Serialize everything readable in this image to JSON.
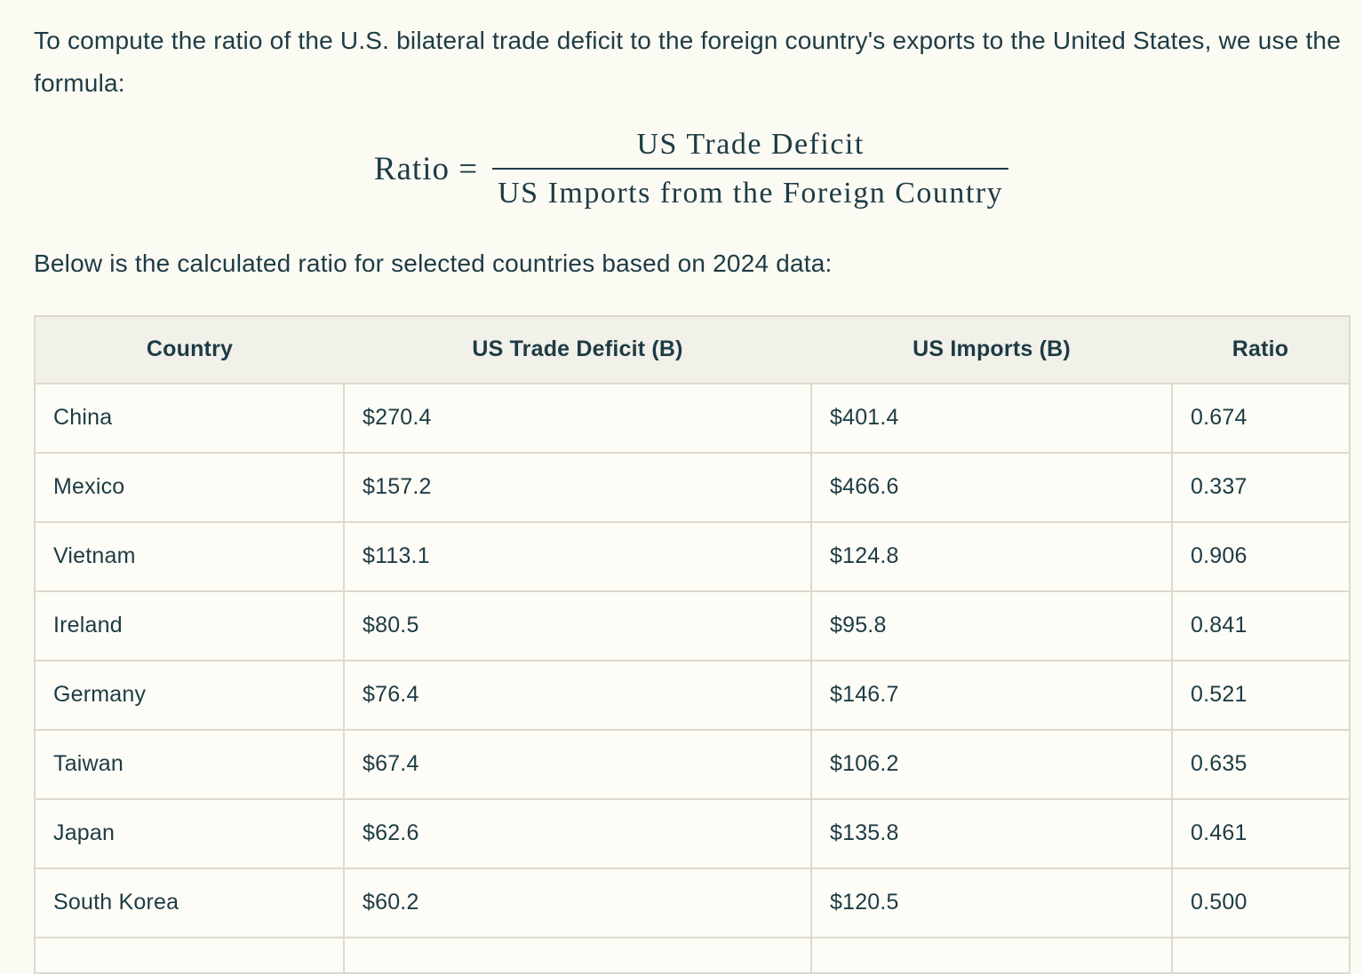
{
  "page": {
    "background_color": "#FBFAF3",
    "text_color": "#1D3B45",
    "intro_paragraph": "To compute the ratio of the U.S. bilateral trade deficit to the foreign country's exports to the United States, we use the formula:",
    "table_intro": "Below is the calculated ratio for selected countries based on 2024 data:"
  },
  "formula": {
    "lhs": "Ratio",
    "equals": "=",
    "numerator": "US Trade Deficit",
    "denominator": "US Imports from the Foreign Country"
  },
  "table": {
    "border_color": "#DCDACD",
    "header_background": "#F1F0E9",
    "cell_background": "#FDFCF6",
    "columns": [
      "Country",
      "US Trade Deficit (B)",
      "US Imports (B)",
      "Ratio"
    ],
    "rows": [
      {
        "country": "China",
        "deficit": "$270.4",
        "imports": "$401.4",
        "ratio": "0.674"
      },
      {
        "country": "Mexico",
        "deficit": "$157.2",
        "imports": "$466.6",
        "ratio": "0.337"
      },
      {
        "country": "Vietnam",
        "deficit": "$113.1",
        "imports": "$124.8",
        "ratio": "0.906"
      },
      {
        "country": "Ireland",
        "deficit": "$80.5",
        "imports": "$95.8",
        "ratio": "0.841"
      },
      {
        "country": "Germany",
        "deficit": "$76.4",
        "imports": "$146.7",
        "ratio": "0.521"
      },
      {
        "country": "Taiwan",
        "deficit": "$67.4",
        "imports": "$106.2",
        "ratio": "0.635"
      },
      {
        "country": "Japan",
        "deficit": "$62.6",
        "imports": "$135.8",
        "ratio": "0.461"
      },
      {
        "country": "South Korea",
        "deficit": "$60.2",
        "imports": "$120.5",
        "ratio": "0.500"
      }
    ],
    "partial_row_visible": true
  }
}
